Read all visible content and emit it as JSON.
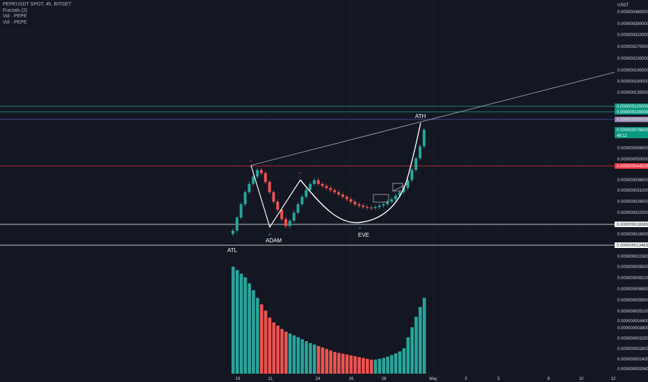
{
  "legend": {
    "title": "PEPEUSDT SPOT, 4h, BITGET",
    "indicators": [
      "Fractals (2)",
      "Vol · PEPE",
      "Vol · PEPE"
    ]
  },
  "price_axis": {
    "unit": "USDT",
    "ticks": [
      "0.000000460000",
      "0.000000380000",
      "0.000000320000",
      "0.000000270000",
      "0.000000230000",
      "0.000000190000",
      "0.000000160000",
      "0.000000135000",
      "0.000000058000",
      "0.000000050000",
      "0.000000036000",
      "0.000000031000",
      "0.000000026000",
      "0.000000022000",
      "0.000000016000",
      "0.000000011500"
    ],
    "badges": [
      {
        "text": "0.000000120000",
        "color": "#089981"
      },
      {
        "text": "0.000000100000",
        "color": "#089981"
      },
      {
        "text": "0.000000090000",
        "color": "#8c7fa6"
      },
      {
        "text": "0.000000076820",
        "sub": "49:12",
        "color": "#089981"
      },
      {
        "text": "0.000000044520",
        "color": "#f23645"
      },
      {
        "text": "0.000000018385",
        "color": "#ffffff"
      },
      {
        "text": "0.000000013483",
        "color": "#ffffff"
      }
    ]
  },
  "volume_axis": {
    "ticks": [
      "0.000000009500",
      "0.000000008100",
      "0.000000006900",
      "0.000000005900",
      "0.000000005100",
      "0.000000004400",
      "0.000000003800",
      "0.000000003250",
      "0.000000002800",
      "0.000000002400",
      "0.000000002060"
    ]
  },
  "time_axis": {
    "ticks": [
      "19",
      "21",
      "24",
      "26",
      "28",
      "May",
      "3",
      "5",
      "8",
      "10",
      "12"
    ]
  },
  "annotations": [
    "ATL",
    "ADAM",
    "EVE",
    "ATH"
  ],
  "colors": {
    "background": "#131722",
    "up": "#26a69a",
    "down": "#ef5350",
    "vol_up": "#26a69a",
    "vol_down": "#ef5350",
    "grid": "#1e222d",
    "red_line": "#f23645",
    "blue_line": "#2962ff",
    "teal_line": "#22ab94"
  },
  "chart_data": {
    "type": "candlestick",
    "candles_close": [
      1.68e-08,
      2.05e-08,
      2.5e-08,
      3e-08,
      3.4e-08,
      3.8e-08,
      4.2e-08,
      4e-08,
      3.5e-08,
      3e-08,
      2.6e-08,
      2.3e-08,
      2e-08,
      1.8e-08,
      1.95e-08,
      2.2e-08,
      2.5e-08,
      2.8e-08,
      3.1e-08,
      3.4e-08,
      3.6e-08,
      3.4e-08,
      3.3e-08,
      3.2e-08,
      3.1e-08,
      3e-08,
      2.9e-08,
      2.8e-08,
      2.7e-08,
      2.6e-08,
      2.5e-08,
      2.45e-08,
      2.4e-08,
      2.38e-08,
      2.36e-08,
      2.4e-08,
      2.45e-08,
      2.5e-08,
      2.6e-08,
      2.7e-08,
      2.85e-08,
      3e-08,
      3.2e-08,
      3.6e-08,
      4.2e-08,
      5e-08,
      6e-08,
      7.68e-08
    ],
    "volume_trend": [
      9.5e-09,
      8.1e-09,
      5.9e-09,
      4.4e-09,
      3.8e-09,
      3.5e-09,
      3.2e-09,
      3e-09,
      2.8e-09,
      2.7e-09,
      2.6e-09,
      2.5e-09,
      2.6e-09,
      2.8e-09,
      3.2e-09,
      3.8e-09
    ]
  }
}
